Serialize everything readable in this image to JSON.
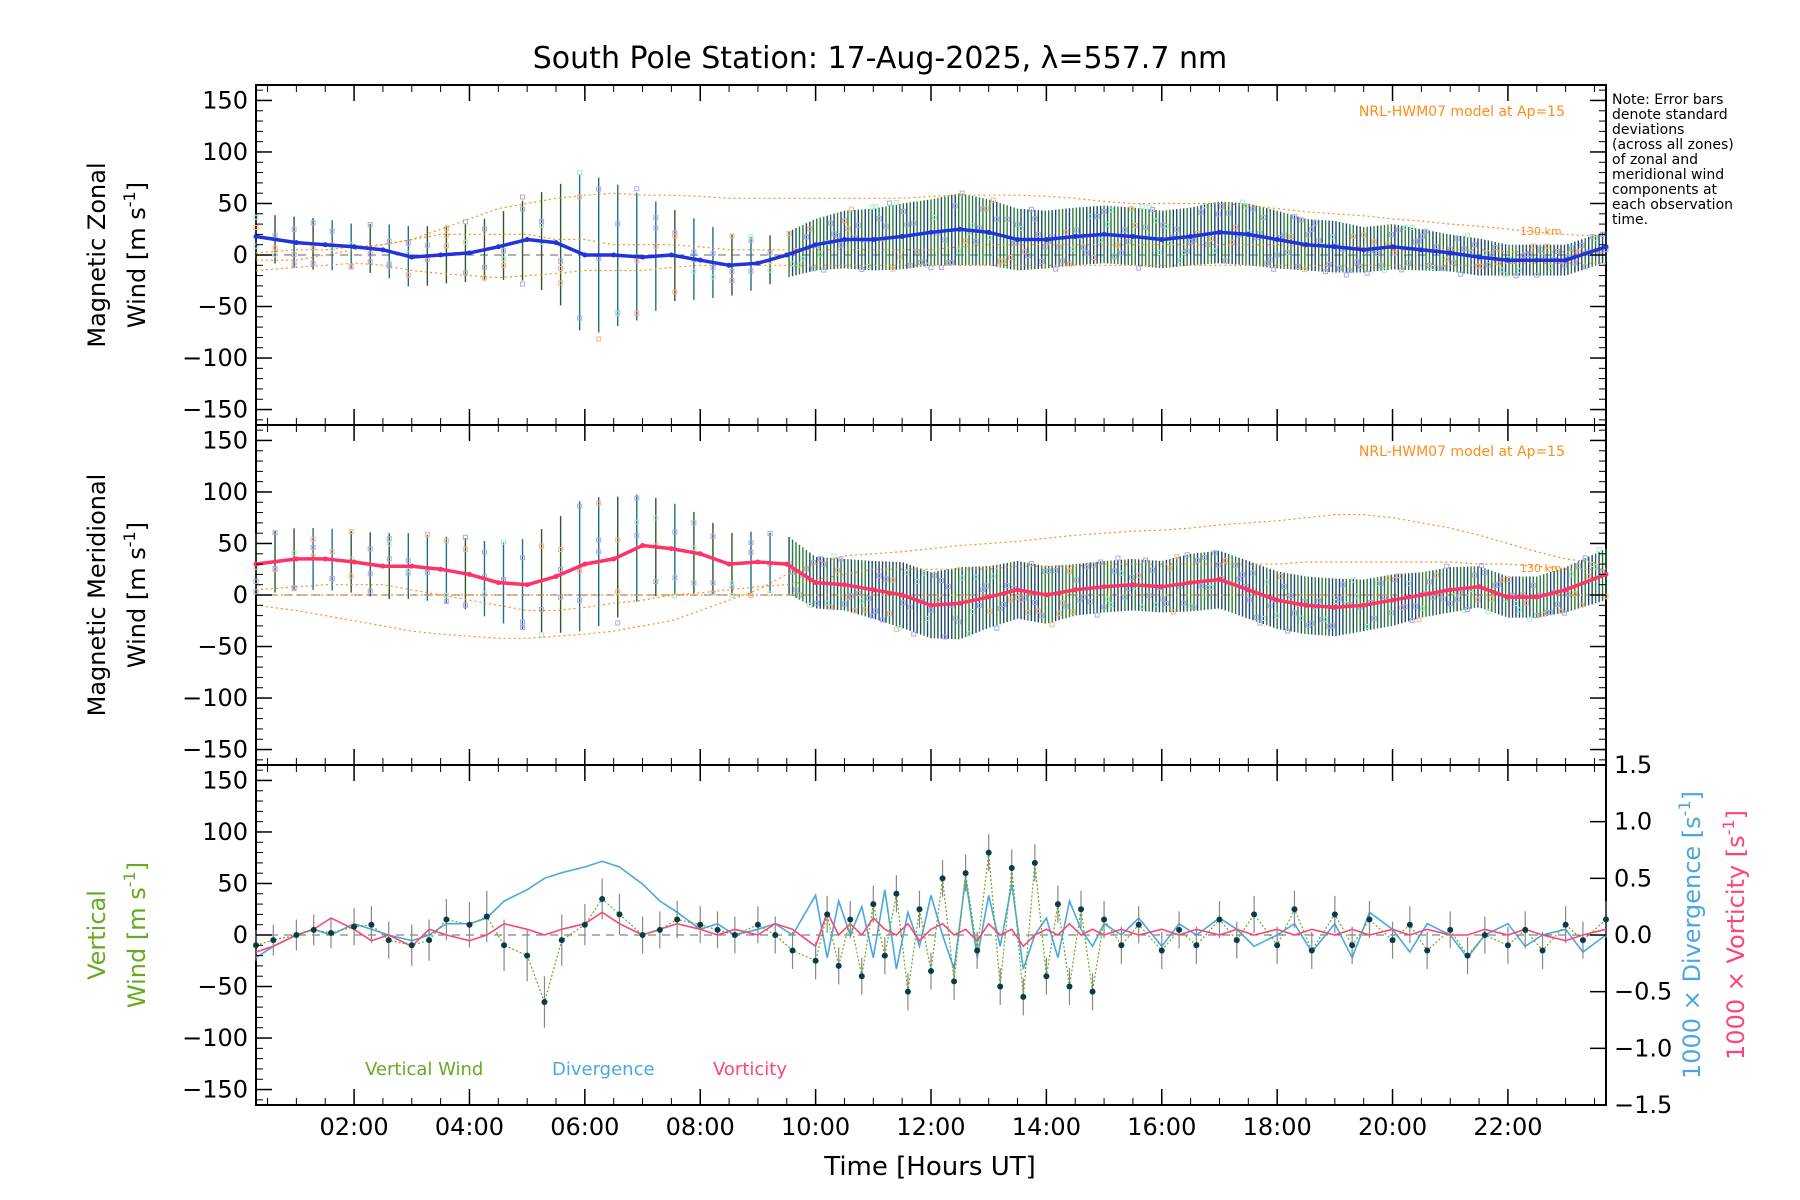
{
  "title": "South Pole Station: 17-Aug-2025, λ=557.7 nm",
  "note": {
    "lines": [
      "Note: Error bars",
      "denote standard",
      "deviations",
      "(across all zones)",
      "of zonal and",
      "meridional wind",
      "components at",
      "each observation",
      "time."
    ]
  },
  "xaxis": {
    "label": "Time [Hours UT]",
    "range": [
      0.3,
      23.7
    ],
    "ticks": [
      2,
      4,
      6,
      8,
      10,
      12,
      14,
      16,
      18,
      20,
      22
    ],
    "tick_labels": [
      "02:00",
      "04:00",
      "06:00",
      "08:00",
      "10:00",
      "12:00",
      "14:00",
      "16:00",
      "18:00",
      "20:00",
      "22:00"
    ]
  },
  "colors": {
    "zonal_mean": "#2233dd",
    "zonal_mean_late": "#4aa8e0",
    "meridional_mean": "#ff3366",
    "model": "#ff8c1a",
    "vertical": "#66aa22",
    "divergence": "#4aa8e0",
    "vorticity": "#ff4477",
    "scatter": "#aaaaee",
    "errbar": "#225533"
  },
  "chart_data": [
    {
      "type": "line",
      "panel": "zonal",
      "ylabel_line1": "Magnetic Zonal",
      "ylabel_line2": "Wind [m s",
      "ylabel_sup": "-1",
      "ylabel_close": "]",
      "ylim": [
        -165,
        165
      ],
      "yticks": [
        -150,
        -100,
        -50,
        0,
        50,
        100,
        150
      ],
      "ytick_labels": [
        "−150",
        "−100",
        "−50",
        "0",
        "50",
        "100",
        "150"
      ],
      "model_label": "NRL-HWM07 model at Ap=15",
      "model_height_label": "130 km",
      "x": [
        0.3,
        1.0,
        1.5,
        2.0,
        2.5,
        3.0,
        3.5,
        4.0,
        4.5,
        5.0,
        5.5,
        6.0,
        6.5,
        7.0,
        7.5,
        8.0,
        8.5,
        9.0,
        9.5,
        10.0,
        10.5,
        11.0,
        11.5,
        12.0,
        12.5,
        13.0,
        13.5,
        14.0,
        14.5,
        15.0,
        15.5,
        16.0,
        16.5,
        17.0,
        17.5,
        18.0,
        18.5,
        19.0,
        19.5,
        20.0,
        20.5,
        21.0,
        21.5,
        22.0,
        22.5,
        23.0,
        23.7
      ],
      "mean": [
        18,
        12,
        10,
        8,
        5,
        -2,
        0,
        2,
        8,
        15,
        12,
        0,
        0,
        -2,
        0,
        -5,
        -10,
        -8,
        0,
        10,
        15,
        15,
        18,
        22,
        25,
        22,
        15,
        15,
        18,
        20,
        18,
        15,
        18,
        22,
        20,
        15,
        10,
        8,
        5,
        8,
        5,
        2,
        -2,
        -5,
        -5,
        -5,
        8
      ],
      "err": [
        22,
        25,
        25,
        22,
        25,
        30,
        28,
        28,
        32,
        40,
        55,
        80,
        70,
        60,
        45,
        38,
        30,
        25,
        22,
        25,
        28,
        30,
        32,
        32,
        35,
        32,
        30,
        28,
        28,
        28,
        28,
        28,
        28,
        30,
        30,
        28,
        25,
        25,
        22,
        22,
        20,
        18,
        18,
        15,
        15,
        15,
        15
      ],
      "model_upper": [
        2,
        5,
        5,
        8,
        10,
        15,
        25,
        35,
        45,
        50,
        55,
        58,
        60,
        58,
        58,
        57,
        55,
        55,
        55,
        55,
        55,
        55,
        55,
        57,
        58,
        58,
        58,
        57,
        55,
        52,
        50,
        50,
        50,
        50,
        48,
        45,
        42,
        40,
        38,
        35,
        33,
        30,
        28,
        25,
        22,
        20,
        18
      ],
      "model_mid": [
        -5,
        -5,
        0,
        5,
        10,
        15,
        20,
        20,
        20,
        20,
        15,
        15,
        10,
        10,
        10,
        8,
        5,
        5,
        5,
        5,
        5,
        5,
        5,
        5,
        8,
        10,
        10,
        10,
        10,
        10,
        10,
        10,
        10,
        10,
        10,
        10,
        8,
        8,
        8,
        5,
        5,
        5,
        5,
        3,
        3,
        3,
        3
      ],
      "model_lower": [
        -15,
        -12,
        -10,
        -8,
        -10,
        -15,
        -18,
        -20,
        -22,
        -20,
        -18,
        -15,
        -15,
        -15,
        -12,
        -10,
        -10,
        -10,
        -10,
        -10,
        -10,
        -10,
        -10,
        -10,
        -10,
        -10,
        -10,
        -10,
        -10,
        -10,
        -10,
        -10,
        -10,
        -10,
        -10,
        -10,
        -10,
        -10,
        -10,
        -10,
        -10,
        -10,
        -10,
        -8,
        -8,
        -8,
        -8
      ]
    },
    {
      "type": "line",
      "panel": "meridional",
      "ylabel_line1": "Magnetic Meridional",
      "ylabel_line2": "Wind [m s",
      "ylabel_sup": "-1",
      "ylabel_close": "]",
      "ylim": [
        -165,
        165
      ],
      "yticks": [
        -150,
        -100,
        -50,
        0,
        50,
        100,
        150
      ],
      "ytick_labels": [
        "−150",
        "−100",
        "−50",
        "0",
        "50",
        "100",
        "150"
      ],
      "model_label": "NRL-HWM07 model at Ap=15",
      "model_height_label": "130 km",
      "x": [
        0.3,
        1.0,
        1.5,
        2.0,
        2.5,
        3.0,
        3.5,
        4.0,
        4.5,
        5.0,
        5.5,
        6.0,
        6.5,
        7.0,
        7.5,
        8.0,
        8.5,
        9.0,
        9.5,
        10.0,
        10.5,
        11.0,
        11.5,
        12.0,
        12.5,
        13.0,
        13.5,
        14.0,
        14.5,
        15.0,
        15.5,
        16.0,
        16.5,
        17.0,
        17.5,
        18.0,
        18.5,
        19.0,
        19.5,
        20.0,
        20.5,
        21.0,
        21.5,
        22.0,
        22.5,
        23.0,
        23.7
      ],
      "mean": [
        30,
        35,
        35,
        32,
        28,
        28,
        25,
        20,
        12,
        10,
        18,
        30,
        35,
        48,
        45,
        40,
        30,
        32,
        30,
        12,
        10,
        5,
        0,
        -10,
        -8,
        -2,
        5,
        0,
        5,
        8,
        10,
        8,
        12,
        15,
        5,
        -5,
        -10,
        -12,
        -10,
        -5,
        0,
        5,
        8,
        -2,
        -2,
        5,
        20
      ],
      "err": [
        30,
        30,
        30,
        30,
        32,
        32,
        32,
        35,
        38,
        45,
        55,
        65,
        60,
        50,
        45,
        38,
        30,
        30,
        28,
        25,
        25,
        28,
        32,
        32,
        35,
        30,
        28,
        28,
        25,
        25,
        25,
        25,
        28,
        28,
        28,
        28,
        28,
        28,
        25,
        25,
        22,
        22,
        20,
        20,
        20,
        22,
        25
      ],
      "model_upper": [
        -10,
        -15,
        -20,
        -25,
        -30,
        -35,
        -38,
        -40,
        -42,
        -42,
        -40,
        -38,
        -35,
        -30,
        -25,
        -15,
        -5,
        5,
        20,
        30,
        38,
        40,
        42,
        45,
        48,
        50,
        52,
        55,
        58,
        60,
        62,
        63,
        65,
        68,
        70,
        72,
        75,
        78,
        78,
        75,
        70,
        65,
        58,
        50,
        42,
        35,
        30
      ],
      "model_mid": [
        5,
        8,
        10,
        10,
        10,
        5,
        0,
        -5,
        -10,
        -15,
        -15,
        -12,
        -8,
        -5,
        0,
        2,
        5,
        8,
        10,
        15,
        20,
        25,
        25,
        25,
        25,
        25,
        28,
        28,
        28,
        30,
        30,
        30,
        30,
        30,
        30,
        30,
        32,
        32,
        32,
        32,
        32,
        32,
        30,
        30,
        28,
        25,
        25
      ],
      "model_lower": [
        0,
        0,
        0,
        0,
        0,
        0,
        0,
        0,
        0,
        0,
        0,
        0,
        0,
        0,
        0,
        0,
        0,
        0,
        0,
        0,
        0,
        0,
        0,
        0,
        0,
        0,
        0,
        0,
        0,
        0,
        0,
        0,
        0,
        0,
        0,
        0,
        0,
        0,
        0,
        0,
        0,
        0,
        0,
        0,
        0,
        0,
        0
      ]
    },
    {
      "type": "line",
      "panel": "vertical",
      "ylabel_line1": "Vertical",
      "ylabel_line2": "Wind [m s",
      "ylabel_sup": "-1",
      "ylabel_close": "]",
      "ylim": [
        -165,
        165
      ],
      "yticks": [
        -150,
        -100,
        -50,
        0,
        50,
        100,
        150
      ],
      "ytick_labels": [
        "−150",
        "−100",
        "−50",
        "0",
        "50",
        "100",
        "150"
      ],
      "y2label_div_a": "1000 × Divergence [s",
      "y2label_div_sup": "-1",
      "y2label_div_close": "]",
      "y2label_vor_a": "1000 × Vorticity [s",
      "y2label_vor_sup": "-1",
      "y2label_vor_close": "]",
      "y2lim": [
        -1.5,
        1.5
      ],
      "y2ticks": [
        -1.5,
        -1.0,
        -0.5,
        0.0,
        0.5,
        1.0,
        1.5
      ],
      "y2tick_labels": [
        "−1.5",
        "−1.0",
        "−0.5",
        "0.0",
        "0.5",
        "1.0",
        "1.5"
      ],
      "legend": [
        "Vertical Wind",
        "Divergence",
        "Vorticity"
      ],
      "x": [
        0.3,
        0.6,
        1.0,
        1.3,
        1.6,
        2.0,
        2.3,
        2.6,
        3.0,
        3.3,
        3.6,
        4.0,
        4.3,
        4.6,
        5.0,
        5.3,
        5.6,
        6.0,
        6.3,
        6.6,
        7.0,
        7.3,
        7.6,
        8.0,
        8.3,
        8.6,
        9.0,
        9.3,
        9.6,
        10.0,
        10.2,
        10.4,
        10.6,
        10.8,
        11.0,
        11.2,
        11.4,
        11.6,
        11.8,
        12.0,
        12.2,
        12.4,
        12.6,
        12.8,
        13.0,
        13.2,
        13.4,
        13.6,
        13.8,
        14.0,
        14.2,
        14.4,
        14.6,
        14.8,
        15.0,
        15.3,
        15.6,
        16.0,
        16.3,
        16.6,
        17.0,
        17.3,
        17.6,
        18.0,
        18.3,
        18.6,
        19.0,
        19.3,
        19.6,
        20.0,
        20.3,
        20.6,
        21.0,
        21.3,
        21.6,
        22.0,
        22.3,
        22.6,
        23.0,
        23.3,
        23.7
      ],
      "vertical": [
        -10,
        -5,
        0,
        5,
        2,
        8,
        10,
        -5,
        -10,
        -5,
        15,
        10,
        18,
        -10,
        -20,
        -65,
        -5,
        10,
        35,
        20,
        0,
        5,
        15,
        10,
        5,
        0,
        10,
        0,
        -15,
        -25,
        20,
        -30,
        15,
        -40,
        30,
        -20,
        40,
        -55,
        25,
        -35,
        55,
        -45,
        60,
        -15,
        80,
        -50,
        65,
        -60,
        70,
        -40,
        30,
        -50,
        25,
        -55,
        15,
        -10,
        10,
        -15,
        5,
        -10,
        15,
        -5,
        20,
        -10,
        25,
        -15,
        20,
        -10,
        15,
        -5,
        10,
        -15,
        5,
        -20,
        0,
        -10,
        5,
        -15,
        10,
        -5,
        15
      ],
      "vertical_err": [
        15,
        15,
        15,
        15,
        15,
        18,
        18,
        18,
        20,
        20,
        20,
        22,
        25,
        25,
        25,
        25,
        25,
        20,
        20,
        20,
        18,
        18,
        18,
        18,
        18,
        18,
        18,
        18,
        18,
        18,
        18,
        18,
        18,
        18,
        18,
        18,
        18,
        18,
        18,
        18,
        18,
        18,
        18,
        18,
        18,
        18,
        18,
        18,
        18,
        18,
        18,
        18,
        18,
        18,
        18,
        18,
        18,
        18,
        18,
        18,
        18,
        18,
        18,
        18,
        18,
        18,
        18,
        18,
        18,
        18,
        18,
        18,
        18,
        18,
        18,
        18,
        18,
        18,
        18,
        18,
        18
      ],
      "divergence": [
        -0.2,
        -0.1,
        0.0,
        0.05,
        0.0,
        0.1,
        0.05,
        0.0,
        -0.05,
        0.0,
        0.1,
        0.1,
        0.15,
        0.3,
        0.4,
        0.5,
        0.55,
        0.6,
        0.65,
        0.6,
        0.45,
        0.3,
        0.2,
        0.05,
        0.1,
        0.0,
        0.05,
        0.1,
        0.0,
        0.35,
        -0.2,
        0.3,
        0.0,
        0.25,
        -0.2,
        0.4,
        -0.3,
        0.2,
        -0.1,
        0.35,
        0.0,
        -0.3,
        0.5,
        -0.2,
        0.35,
        -0.1,
        0.45,
        -0.3,
        0.0,
        0.15,
        -0.2,
        0.3,
        0.05,
        -0.1,
        0.1,
        0.0,
        0.15,
        -0.1,
        0.1,
        0.0,
        0.15,
        0.05,
        -0.1,
        0.0,
        0.1,
        -0.15,
        0.1,
        -0.2,
        0.2,
        0.05,
        -0.15,
        0.1,
        0.0,
        -0.2,
        0.0,
        0.1,
        -0.1,
        0.0,
        0.05,
        -0.15,
        0.0
      ],
      "vorticity": [
        -0.15,
        -0.1,
        0.0,
        0.05,
        0.15,
        0.05,
        -0.05,
        0.0,
        -0.1,
        0.05,
        0.0,
        -0.05,
        0.0,
        0.1,
        0.05,
        0.0,
        0.05,
        0.1,
        0.2,
        0.1,
        0.0,
        0.05,
        0.1,
        0.05,
        0.0,
        0.05,
        0.0,
        0.1,
        0.05,
        -0.1,
        0.2,
        0.0,
        0.1,
        0.0,
        0.15,
        0.05,
        0.0,
        0.1,
        -0.05,
        0.05,
        0.1,
        0.0,
        0.05,
        -0.05,
        0.1,
        0.0,
        0.05,
        -0.1,
        0.0,
        0.05,
        0.0,
        0.1,
        0.0,
        0.05,
        0.0,
        0.05,
        0.0,
        0.05,
        0.0,
        0.05,
        0.0,
        0.05,
        0.0,
        0.05,
        0.0,
        0.05,
        0.0,
        0.05,
        0.0,
        0.05,
        0.0,
        0.05,
        0.0,
        0.0,
        0.05,
        0.0,
        0.05,
        0.0,
        -0.05,
        0.0,
        0.05
      ]
    }
  ]
}
